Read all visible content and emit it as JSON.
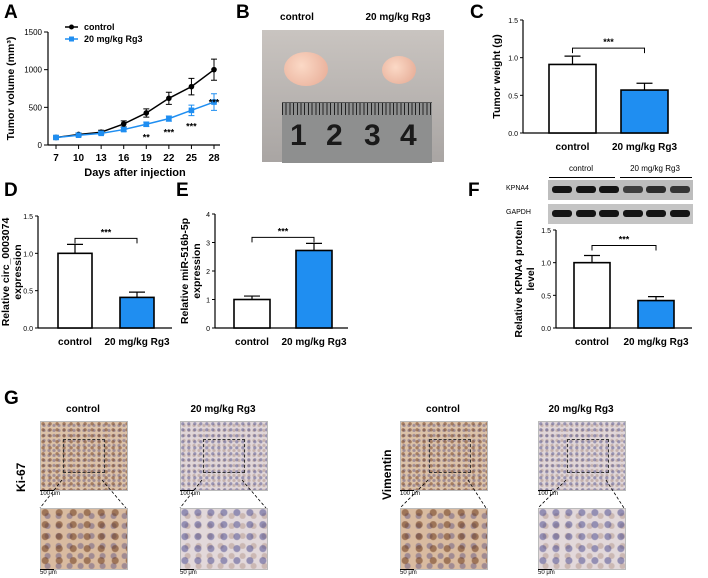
{
  "panels": {
    "A": "A",
    "B": "B",
    "C": "C",
    "D": "D",
    "E": "E",
    "F": "F",
    "G": "G"
  },
  "colors": {
    "control_line": "#000000",
    "treatment": "#1f8ef1",
    "control_bar": "#ffffff"
  },
  "photo": {
    "header_control": "control",
    "header_treatment": "20 mg/kg Rg3",
    "ruler_numbers": [
      "1",
      "2",
      "3",
      "4"
    ]
  },
  "western": {
    "header_control": "control",
    "header_treatment": "20 mg/kg Rg3",
    "rows": [
      "KPNA4",
      "GAPDH"
    ]
  },
  "histology": {
    "headers": [
      "control",
      "20 mg/kg Rg3",
      "control",
      "20 mg/kg Rg3"
    ],
    "row_labels": [
      "Ki-67",
      "Vimentin"
    ],
    "scale_top": "100 μm",
    "scale_bottom": "50 μm"
  },
  "chart_data": [
    {
      "id": "A",
      "type": "line",
      "xlabel": "Days after injection",
      "ylabel": "Tumor volume (mm³)",
      "x": [
        7,
        10,
        13,
        16,
        19,
        22,
        25,
        28
      ],
      "ylim": [
        0,
        1500
      ],
      "yticks": [
        0,
        500,
        1000,
        1500
      ],
      "legend": "top-left",
      "series": [
        {
          "name": "control",
          "marker": "circle",
          "values": [
            100,
            140,
            170,
            280,
            425,
            620,
            775,
            1000
          ],
          "errors": [
            20,
            20,
            25,
            40,
            55,
            80,
            110,
            140
          ]
        },
        {
          "name": "20 mg/kg Rg3",
          "marker": "square",
          "values": [
            100,
            130,
            155,
            205,
            275,
            350,
            460,
            570
          ],
          "errors": [
            15,
            15,
            15,
            25,
            30,
            35,
            70,
            110
          ]
        }
      ],
      "significance": [
        "",
        "",
        "",
        "",
        "**",
        "***",
        "***",
        "***"
      ]
    },
    {
      "id": "C",
      "type": "bar",
      "ylabel": "Tumor weight (g)",
      "categories": [
        "control",
        "20 mg/kg Rg3"
      ],
      "values": [
        0.91,
        0.57
      ],
      "errors": [
        0.11,
        0.09
      ],
      "ylim": [
        0,
        1.5
      ],
      "yticks": [
        "0.0",
        "0.5",
        "1.0",
        "1.5"
      ],
      "significance": "***"
    },
    {
      "id": "D",
      "type": "bar",
      "ylabel": "Relative circ_0003074 expression",
      "categories": [
        "control",
        "20 mg/kg Rg3"
      ],
      "values": [
        1.0,
        0.41
      ],
      "errors": [
        0.12,
        0.07
      ],
      "ylim": [
        0,
        1.5
      ],
      "yticks": [
        "0.0",
        "0.5",
        "1.0",
        "1.5"
      ],
      "significance": "***"
    },
    {
      "id": "E",
      "type": "bar",
      "ylabel": "Relative miR-516b-5p expression",
      "categories": [
        "control",
        "20 mg/kg Rg3"
      ],
      "values": [
        1.0,
        2.72
      ],
      "errors": [
        0.12,
        0.25
      ],
      "ylim": [
        0,
        4
      ],
      "yticks": [
        "0",
        "1",
        "2",
        "3",
        "4"
      ],
      "significance": "***"
    },
    {
      "id": "F",
      "type": "bar",
      "ylabel": "Relative KPNA4 protein level",
      "categories": [
        "control",
        "20 mg/kg Rg3"
      ],
      "values": [
        1.0,
        0.42
      ],
      "errors": [
        0.11,
        0.06
      ],
      "ylim": [
        0,
        1.5
      ],
      "yticks": [
        "0.0",
        "0.5",
        "1.0",
        "1.5"
      ],
      "significance": "***"
    }
  ]
}
